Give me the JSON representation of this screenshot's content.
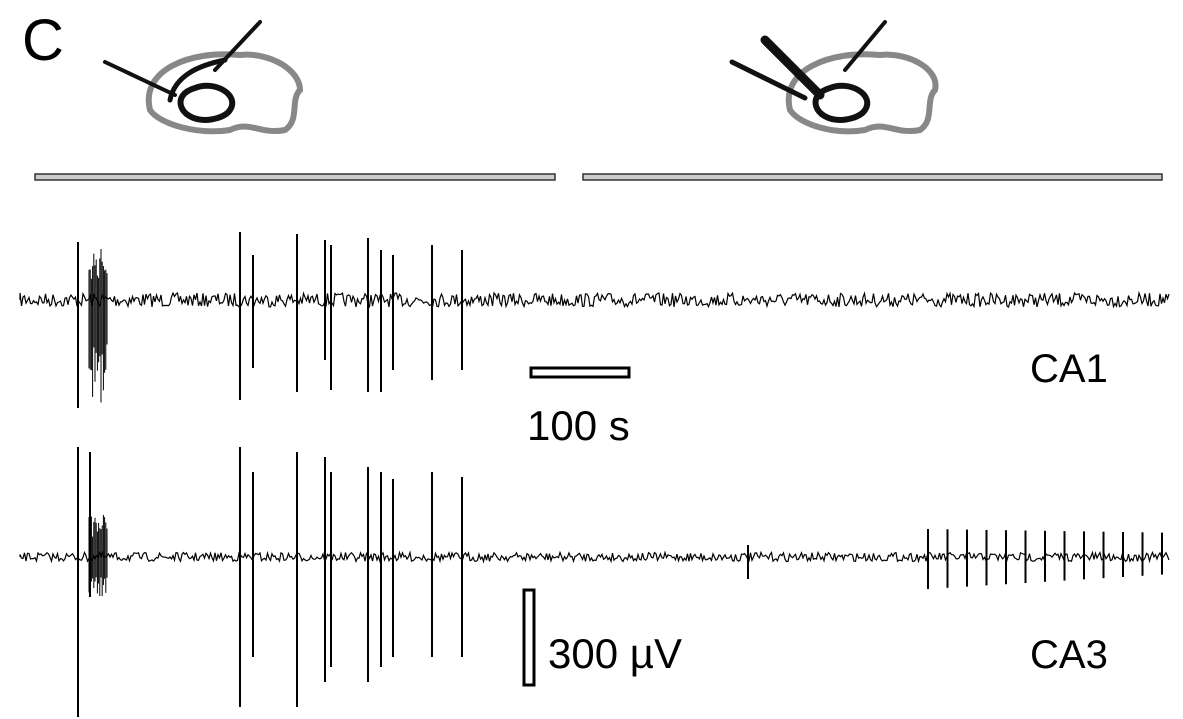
{
  "panel_label": "C",
  "scale_bars": {
    "time": "100 s",
    "voltage": "300 µV"
  },
  "traces": [
    {
      "label": "CA1"
    },
    {
      "label": "CA3"
    }
  ]
}
